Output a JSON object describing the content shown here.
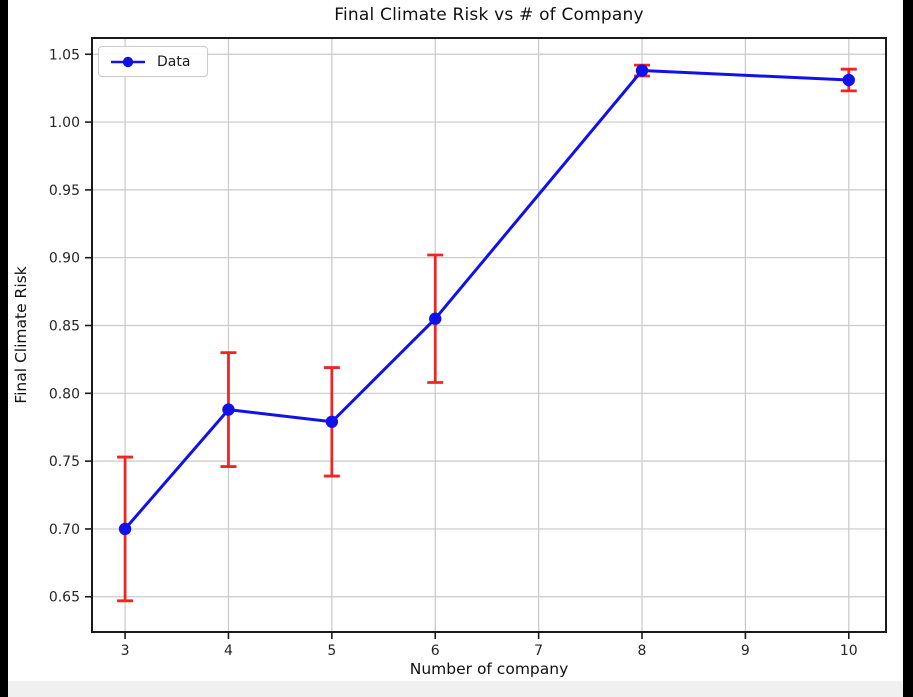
{
  "page": {
    "background": "#ffffff",
    "letterbox_bar_color": "#000000",
    "bottom_strip_color": "#f1f0f1"
  },
  "chart_data": {
    "type": "line",
    "title": "Final Climate Risk vs # of Company",
    "xlabel": "Number of company",
    "ylabel": "Final Climate Risk",
    "series": [
      {
        "name": "Data",
        "x": [
          3,
          4,
          5,
          6,
          8,
          10
        ],
        "y": [
          0.7,
          0.788,
          0.779,
          0.855,
          1.038,
          1.031
        ],
        "yerr": [
          0.053,
          0.042,
          0.04,
          0.047,
          0.004,
          0.008
        ],
        "line_color": "#1212e8",
        "marker": "circle",
        "marker_color": "#1212e8",
        "error_color": "#ee2525"
      }
    ],
    "xlim": [
      2.68,
      10.36
    ],
    "ylim": [
      0.624,
      1.062
    ],
    "xticks": [
      3,
      4,
      5,
      6,
      7,
      8,
      9,
      10
    ],
    "yticks": [
      0.65,
      0.7,
      0.75,
      0.8,
      0.85,
      0.9,
      0.95,
      1.0,
      1.05
    ],
    "grid": true,
    "grid_color": "#c9c9c9",
    "spine_color": "#1a1a1a",
    "tick_label_color": "#262626",
    "legend": {
      "position": "upper left",
      "labels": [
        "Data"
      ]
    }
  }
}
